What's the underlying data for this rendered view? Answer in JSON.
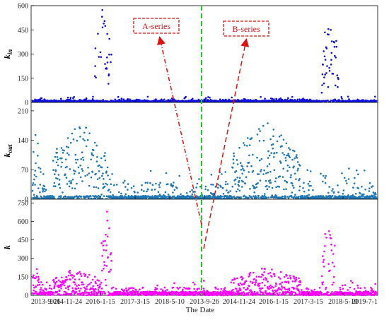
{
  "chart_data": {
    "type": "scatter",
    "xlabel": "The Date",
    "x_ticks": [
      "2013-9-26",
      "2014-11-24",
      "2016-1-15",
      "2017-3-15",
      "2018-5-10",
      "2013-9-26",
      "2014-11-24",
      "2016-1-15",
      "2017-3-15",
      "2018-5-10",
      "2019-7-1"
    ],
    "divider_label_index": 5,
    "annotations": [
      "A-series",
      "B-series"
    ],
    "panels": [
      {
        "id": "k-in",
        "ylabel": "k",
        "ylabel_sub": "in",
        "ylim": [
          0,
          600
        ],
        "y_ticks": [
          0,
          150,
          300,
          450,
          600
        ],
        "color": "#1010e0",
        "baseline": 12,
        "noise": 12,
        "bursts": [
          [
            0.18,
            0.23,
            600
          ],
          [
            0.84,
            0.89,
            600
          ]
        ],
        "spread": [
          0.1,
          0.9
        ]
      },
      {
        "id": "k-out",
        "ylabel": "k",
        "ylabel_sub": "out",
        "ylim": [
          0,
          230
        ],
        "y_ticks": [
          0,
          70,
          140,
          210
        ],
        "color": "#1f77b4",
        "baseline": 8,
        "noise": 25,
        "bursts": [
          [
            0.0,
            0.02,
            215
          ],
          [
            0.06,
            0.22,
            190
          ],
          [
            0.58,
            0.78,
            190
          ]
        ],
        "spread": [
          0.0,
          1.0
        ]
      },
      {
        "id": "k",
        "ylabel": "k",
        "ylabel_sub": "",
        "ylim": [
          0,
          780
        ],
        "y_ticks": [
          0,
          150,
          300,
          450,
          600,
          750
        ],
        "color": "#ff00ff",
        "baseline": 30,
        "noise": 40,
        "bursts": [
          [
            0.0,
            0.02,
            240
          ],
          [
            0.06,
            0.2,
            230
          ],
          [
            0.2,
            0.23,
            730
          ],
          [
            0.58,
            0.78,
            230
          ],
          [
            0.84,
            0.88,
            700
          ]
        ],
        "spread": [
          0.0,
          1.0
        ]
      }
    ],
    "colors": {
      "divider": "#22cc22",
      "annotation": "#e01010"
    }
  }
}
